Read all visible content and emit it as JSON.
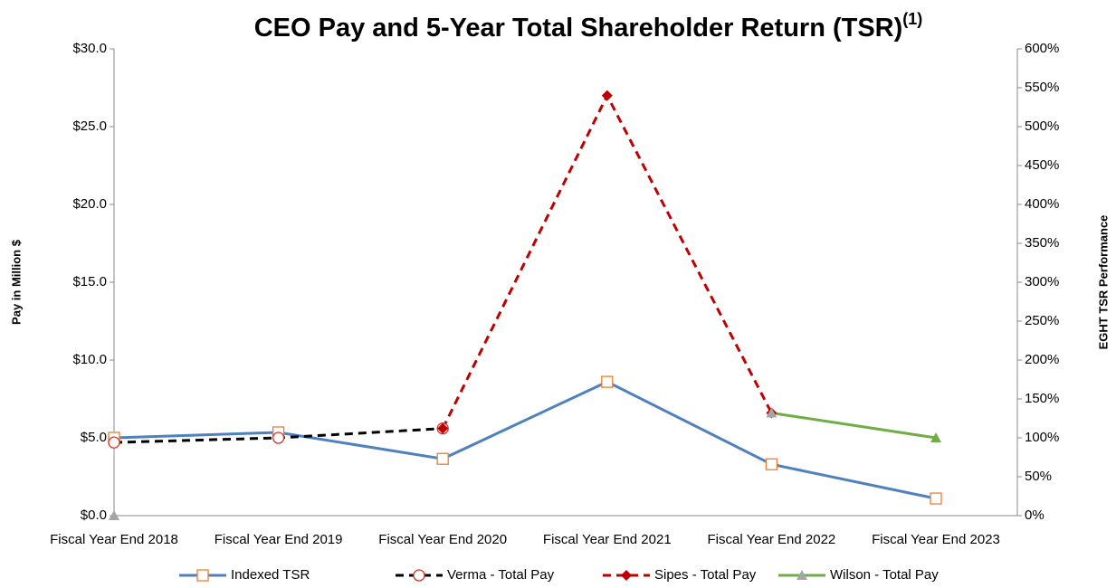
{
  "chart_data": {
    "type": "line",
    "title": "CEO Pay and 5-Year Total Shareholder Return (TSR)",
    "title_note": "(1)",
    "ylabel": "Pay in Million $",
    "y2label": "EGHT TSR Performance",
    "categories": [
      "Fiscal Year End 2018",
      "Fiscal Year End 2019",
      "Fiscal Year End 2020",
      "Fiscal Year End 2021",
      "Fiscal Year End 2022",
      "Fiscal Year End 2023"
    ],
    "ylim": [
      0,
      30
    ],
    "yticks": [
      {
        "value": 0,
        "label": "$0.0"
      },
      {
        "value": 5,
        "label": "$5.0"
      },
      {
        "value": 10,
        "label": "$10.0"
      },
      {
        "value": 15,
        "label": "$15.0"
      },
      {
        "value": 20,
        "label": "$20.0"
      },
      {
        "value": 25,
        "label": "$25.0"
      },
      {
        "value": 30,
        "label": "$30.0"
      }
    ],
    "y2lim": [
      0,
      600
    ],
    "y2ticks": [
      {
        "value": 0,
        "label": "0%"
      },
      {
        "value": 50,
        "label": "50%"
      },
      {
        "value": 100,
        "label": "100%"
      },
      {
        "value": 150,
        "label": "150%"
      },
      {
        "value": 200,
        "label": "200%"
      },
      {
        "value": 250,
        "label": "250%"
      },
      {
        "value": 300,
        "label": "300%"
      },
      {
        "value": 350,
        "label": "350%"
      },
      {
        "value": 400,
        "label": "400%"
      },
      {
        "value": 450,
        "label": "450%"
      },
      {
        "value": 500,
        "label": "500%"
      },
      {
        "value": 550,
        "label": "550%"
      },
      {
        "value": 600,
        "label": "600%"
      }
    ],
    "legend": "bottom",
    "series": [
      {
        "name": "Indexed TSR",
        "axis": "y2",
        "color": "#4f81bd",
        "marker": "square",
        "marker_color": "#ed7d31",
        "dash": false,
        "values": [
          100,
          107,
          73,
          172,
          66,
          22
        ]
      },
      {
        "name": "Verma - Total Pay",
        "color": "#000000",
        "marker": "circle",
        "marker_color": "#e0301e",
        "dash": true,
        "values": [
          4.7,
          5.0,
          5.6,
          null,
          null,
          null
        ]
      },
      {
        "name": "Sipes - Total Pay",
        "color": "#c00000",
        "marker": "diamond",
        "marker_color": "#c00000",
        "dash": true,
        "values": [
          null,
          null,
          5.6,
          27.0,
          6.6,
          null
        ]
      },
      {
        "name": "Wilson - Total Pay",
        "color": "#70ad47",
        "marker": "triangle",
        "marker_color": "#a5a5a5",
        "dash": false,
        "values": [
          0.0,
          null,
          null,
          null,
          6.6,
          5.0
        ]
      }
    ]
  }
}
